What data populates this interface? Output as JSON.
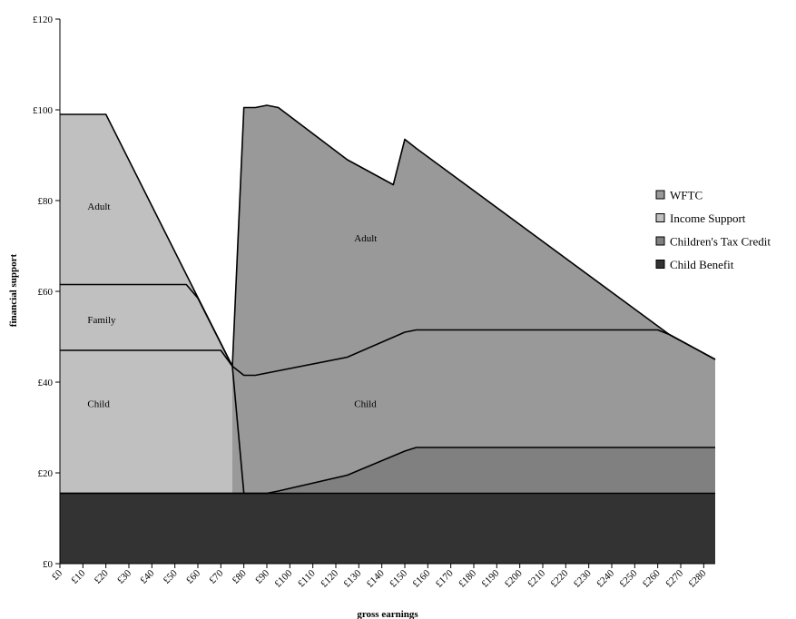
{
  "chart_data": {
    "type": "area",
    "xlabel": "gross earnings",
    "ylabel": "financial support",
    "ylim": [
      0,
      120
    ],
    "xlim": [
      0,
      285
    ],
    "y_ticks": [
      0,
      20,
      40,
      60,
      80,
      100,
      120
    ],
    "y_tick_labels": [
      "£0",
      "£20",
      "£40",
      "£60",
      "£80",
      "£100",
      "£120"
    ],
    "x_ticks": [
      0,
      10,
      20,
      30,
      40,
      50,
      60,
      70,
      80,
      90,
      100,
      110,
      120,
      130,
      140,
      150,
      160,
      170,
      180,
      190,
      200,
      210,
      220,
      230,
      240,
      250,
      260,
      270,
      280
    ],
    "x_tick_labels": [
      "£0",
      "£10",
      "£20",
      "£30",
      "£40",
      "£50",
      "£60",
      "£70",
      "£80",
      "£90",
      "£100",
      "£110",
      "£120",
      "£130",
      "£140",
      "£150",
      "£160",
      "£170",
      "£180",
      "£190",
      "£200",
      "£210",
      "£220",
      "£230",
      "£240",
      "£250",
      "£260",
      "£270",
      "£280"
    ],
    "legend_position": "right",
    "legend": [
      {
        "name": "WFTC",
        "color": "#999999"
      },
      {
        "name": "Income Support",
        "color": "#c0c0c0"
      },
      {
        "name": "Children's Tax Credit",
        "color": "#808080"
      },
      {
        "name": "Child Benefit",
        "color": "#333333"
      }
    ],
    "boundaries": {
      "child_benefit_top": [
        [
          0,
          15.5
        ],
        [
          285,
          15.5
        ]
      ],
      "ctc_top": [
        [
          0,
          15.5
        ],
        [
          90,
          15.5
        ],
        [
          95,
          16
        ],
        [
          125,
          19.5
        ],
        [
          150,
          24.8
        ],
        [
          155,
          25.6
        ],
        [
          285,
          25.6
        ]
      ],
      "is_child_top": [
        [
          0,
          47
        ],
        [
          70,
          47
        ],
        [
          75,
          43.5
        ],
        [
          80,
          15.5
        ]
      ],
      "is_family_top": [
        [
          0,
          61.5
        ],
        [
          55,
          61.5
        ],
        [
          60,
          58.5
        ],
        [
          75,
          43.5
        ]
      ],
      "is_adult_top": [
        [
          0,
          99
        ],
        [
          20,
          99
        ],
        [
          75,
          43.5
        ]
      ],
      "wftc_child_top": [
        [
          75,
          43.5
        ],
        [
          80,
          41.5
        ],
        [
          85,
          41.5
        ],
        [
          125,
          45.5
        ],
        [
          150,
          51
        ],
        [
          155,
          51.5
        ],
        [
          260,
          51.5
        ],
        [
          265,
          50.5
        ],
        [
          285,
          45
        ]
      ],
      "wftc_adult_top": [
        [
          75,
          43.5
        ],
        [
          80,
          100.5
        ],
        [
          85,
          100.5
        ],
        [
          90,
          101
        ],
        [
          95,
          100.5
        ],
        [
          125,
          89
        ],
        [
          145,
          83.5
        ],
        [
          150,
          93.5
        ],
        [
          155,
          91.5
        ],
        [
          265,
          50.5
        ],
        [
          285,
          45
        ]
      ]
    },
    "regions": [
      {
        "series": "Child Benefit",
        "lower": null,
        "upper": "child_benefit_top",
        "x_range": [
          0,
          285
        ]
      },
      {
        "series": "Children's Tax Credit",
        "lower": "child_benefit_top",
        "upper": "ctc_top",
        "x_range": [
          80,
          285
        ]
      },
      {
        "series": "Income Support",
        "lower": "child_benefit_top",
        "upper": "is_adult_top",
        "x_range": [
          0,
          80
        ]
      },
      {
        "series": "WFTC",
        "lower": "ctc_top",
        "upper": "wftc_adult_top",
        "x_range": [
          75,
          285
        ]
      }
    ],
    "annotations": [
      {
        "text": "Adult",
        "x": 12,
        "y": 78
      },
      {
        "text": "Family",
        "x": 12,
        "y": 53
      },
      {
        "text": "Child",
        "x": 12,
        "y": 34.5
      },
      {
        "text": "Adult",
        "x": 128,
        "y": 71
      },
      {
        "text": "Child",
        "x": 128,
        "y": 34.5
      }
    ]
  }
}
